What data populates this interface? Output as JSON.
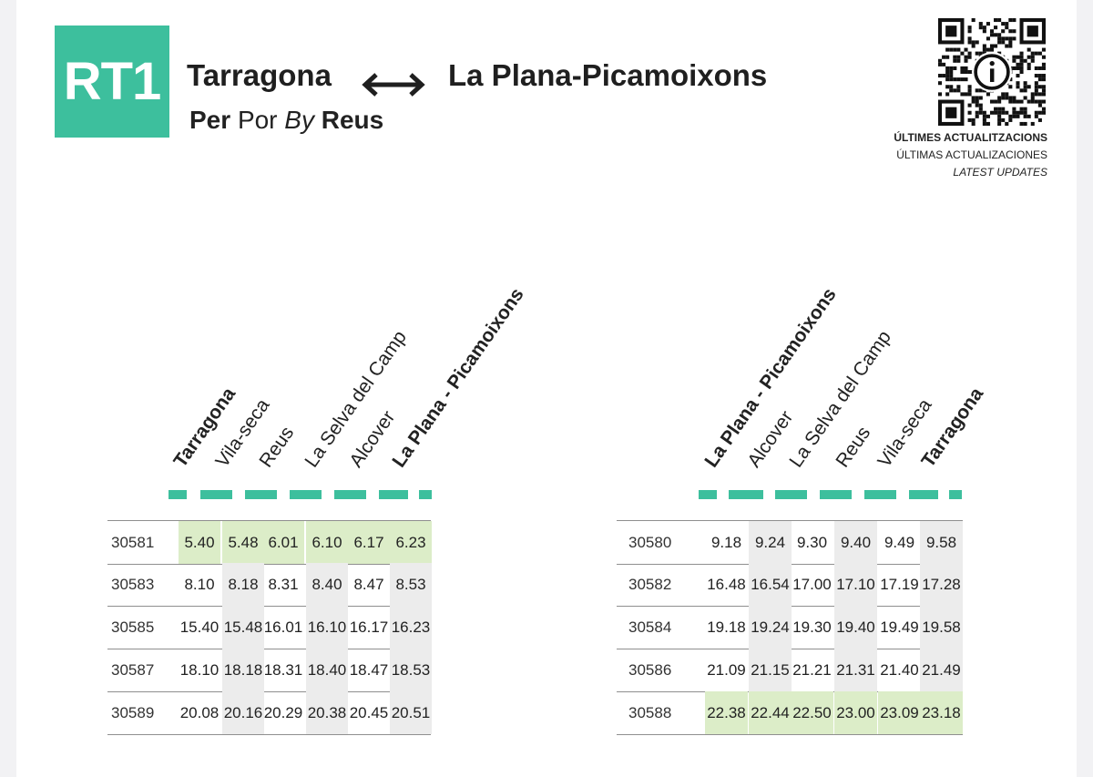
{
  "header": {
    "line_code": "RT1",
    "route_from": "Tarragona",
    "route_to": "La Plana-Picamoixons",
    "via_ca": "Per",
    "via_es": "Por",
    "via_en": "By",
    "via_city": "Reus"
  },
  "updates": {
    "line_ca": "ÚLTIMES ACTUALITZACIONS",
    "line_es": "ÚLTIMAS ACTUALIZACIONES",
    "line_en": "LATEST UPDATES"
  },
  "colors": {
    "accent": "#3dbf9d",
    "highlight_row": "#dcedc8",
    "shaded_column": "#ececec"
  },
  "icons": {
    "qr": "qr-code-icon",
    "info": "info-icon",
    "arrow": "double-arrow-icon"
  },
  "outbound": {
    "stops": [
      "Tarragona",
      "Vila-seca",
      "Reus",
      "La Selva del Camp",
      "Alcover",
      "La Plana - Picamoixons"
    ],
    "rows": [
      {
        "train": "30581",
        "times": [
          "5.40",
          "5.48",
          "6.01",
          "6.10",
          "6.17",
          "6.23"
        ]
      },
      {
        "train": "30583",
        "times": [
          "8.10",
          "8.18",
          "8.31",
          "8.40",
          "8.47",
          "8.53"
        ]
      },
      {
        "train": "30585",
        "times": [
          "15.40",
          "15.48",
          "16.01",
          "16.10",
          "16.17",
          "16.23"
        ]
      },
      {
        "train": "30587",
        "times": [
          "18.10",
          "18.18",
          "18.31",
          "18.40",
          "18.47",
          "18.53"
        ]
      },
      {
        "train": "30589",
        "times": [
          "20.08",
          "20.16",
          "20.29",
          "20.38",
          "20.45",
          "20.51"
        ]
      }
    ]
  },
  "inbound": {
    "stops": [
      "La Plana - Picamoixons",
      "Alcover",
      "La Selva del Camp",
      "Reus",
      "Vila-seca",
      "Tarragona"
    ],
    "rows": [
      {
        "train": "30580",
        "times": [
          "9.18",
          "9.24",
          "9.30",
          "9.40",
          "9.49",
          "9.58"
        ]
      },
      {
        "train": "30582",
        "times": [
          "16.48",
          "16.54",
          "17.00",
          "17.10",
          "17.19",
          "17.28"
        ]
      },
      {
        "train": "30584",
        "times": [
          "19.18",
          "19.24",
          "19.30",
          "19.40",
          "19.49",
          "19.58"
        ]
      },
      {
        "train": "30586",
        "times": [
          "21.09",
          "21.15",
          "21.21",
          "21.31",
          "21.40",
          "21.49"
        ]
      },
      {
        "train": "30588",
        "times": [
          "22.38",
          "22.44",
          "22.50",
          "23.00",
          "23.09",
          "23.18"
        ]
      }
    ]
  }
}
